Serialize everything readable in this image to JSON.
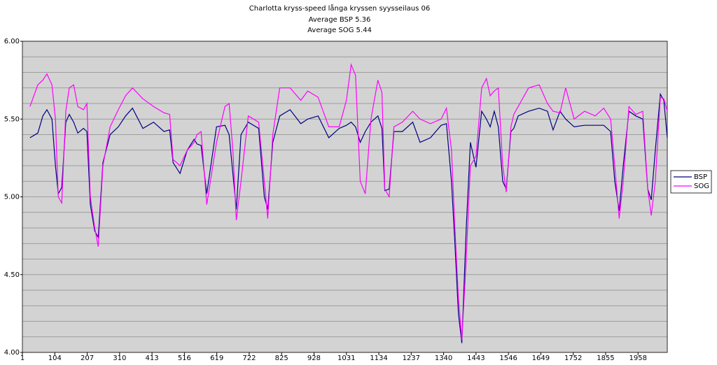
{
  "chart_data": {
    "type": "line",
    "title": "Charlotta kryss-speed långa kryssen syysseilaus 06",
    "subtitles": [
      "Average BSP 5.36",
      "Average SOG 5.44"
    ],
    "x": [
      25,
      50,
      66,
      79,
      95,
      106,
      115,
      126,
      139,
      150,
      164,
      177,
      195,
      206,
      217,
      231,
      242,
      257,
      280,
      306,
      329,
      351,
      384,
      418,
      451,
      469,
      480,
      502,
      525,
      547,
      556,
      569,
      587,
      618,
      645,
      658,
      670,
      681,
      696,
      719,
      752,
      770,
      781,
      797,
      819,
      852,
      886,
      908,
      941,
      975,
      1008,
      1031,
      1046,
      1060,
      1075,
      1091,
      1109,
      1131,
      1144,
      1153,
      1167,
      1182,
      1209,
      1242,
      1265,
      1298,
      1332,
      1349,
      1365,
      1376,
      1387,
      1398,
      1412,
      1425,
      1443,
      1461,
      1476,
      1488,
      1501,
      1514,
      1528,
      1539,
      1554,
      1563,
      1577,
      1610,
      1644,
      1670,
      1688,
      1710,
      1728,
      1755,
      1788,
      1822,
      1849,
      1871,
      1884,
      1898,
      1911,
      1929,
      1951,
      1973,
      1989,
      2000,
      2013,
      2029,
      2040,
      2051
    ],
    "series": [
      {
        "name": "BSP",
        "color": "#000080",
        "values": [
          5.38,
          5.41,
          5.52,
          5.56,
          5.5,
          5.2,
          5.02,
          5.06,
          5.48,
          5.53,
          5.48,
          5.41,
          5.44,
          5.42,
          4.95,
          4.78,
          4.74,
          5.22,
          5.4,
          5.45,
          5.52,
          5.57,
          5.44,
          5.48,
          5.42,
          5.43,
          5.22,
          5.15,
          5.3,
          5.37,
          5.34,
          5.33,
          5.02,
          5.45,
          5.46,
          5.4,
          5.15,
          4.92,
          5.4,
          5.48,
          5.44,
          5.0,
          4.92,
          5.35,
          5.52,
          5.56,
          5.47,
          5.5,
          5.52,
          5.38,
          5.44,
          5.46,
          5.48,
          5.45,
          5.35,
          5.42,
          5.48,
          5.52,
          5.44,
          5.04,
          5.05,
          5.42,
          5.42,
          5.48,
          5.35,
          5.38,
          5.46,
          5.47,
          5.1,
          4.7,
          4.25,
          4.06,
          4.8,
          5.35,
          5.19,
          5.55,
          5.5,
          5.45,
          5.55,
          5.45,
          5.1,
          5.05,
          5.42,
          5.44,
          5.52,
          5.55,
          5.57,
          5.55,
          5.43,
          5.55,
          5.5,
          5.45,
          5.46,
          5.46,
          5.46,
          5.42,
          5.1,
          4.91,
          5.2,
          5.55,
          5.52,
          5.5,
          5.05,
          4.98,
          5.3,
          5.66,
          5.62,
          5.38
        ]
      },
      {
        "name": "SOG",
        "color": "#ff00ff",
        "values": [
          5.58,
          5.72,
          5.75,
          5.79,
          5.72,
          5.5,
          5.0,
          4.96,
          5.55,
          5.7,
          5.72,
          5.58,
          5.56,
          5.6,
          5.0,
          4.8,
          4.68,
          5.2,
          5.45,
          5.56,
          5.65,
          5.7,
          5.63,
          5.58,
          5.54,
          5.53,
          5.24,
          5.2,
          5.3,
          5.35,
          5.4,
          5.42,
          4.95,
          5.35,
          5.58,
          5.6,
          5.3,
          4.85,
          5.1,
          5.52,
          5.48,
          5.1,
          4.86,
          5.4,
          5.7,
          5.7,
          5.62,
          5.68,
          5.64,
          5.45,
          5.45,
          5.62,
          5.85,
          5.78,
          5.1,
          5.02,
          5.5,
          5.75,
          5.67,
          5.05,
          5.0,
          5.45,
          5.48,
          5.55,
          5.5,
          5.47,
          5.5,
          5.57,
          5.3,
          4.8,
          4.35,
          4.08,
          4.6,
          5.2,
          5.26,
          5.7,
          5.76,
          5.65,
          5.68,
          5.7,
          5.2,
          5.03,
          5.45,
          5.53,
          5.58,
          5.7,
          5.72,
          5.6,
          5.55,
          5.54,
          5.7,
          5.5,
          5.55,
          5.52,
          5.57,
          5.5,
          5.2,
          4.86,
          5.1,
          5.58,
          5.53,
          5.55,
          5.05,
          4.88,
          5.1,
          5.64,
          5.63,
          5.55
        ]
      }
    ],
    "xlim": [
      1,
      2051
    ],
    "xticks": [
      1,
      104,
      207,
      310,
      413,
      516,
      619,
      722,
      825,
      928,
      1031,
      1134,
      1237,
      1340,
      1443,
      1546,
      1649,
      1752,
      1855,
      1958
    ],
    "ylim": [
      4,
      6
    ],
    "yticks": [
      {
        "value": 4,
        "label": "4.00"
      },
      {
        "value": 4.5,
        "label": "4.50"
      },
      {
        "value": 5,
        "label": "5.00"
      },
      {
        "value": 5.5,
        "label": "5.50"
      },
      {
        "value": 6,
        "label": "6.00"
      }
    ],
    "minor_yticks": [
      4.1,
      4.2,
      4.3,
      4.4,
      4.6,
      4.7,
      4.8,
      4.9,
      5.1,
      5.2,
      5.3,
      5.4,
      5.6,
      5.7,
      5.8,
      5.9
    ],
    "grid": true,
    "legend": "right"
  }
}
